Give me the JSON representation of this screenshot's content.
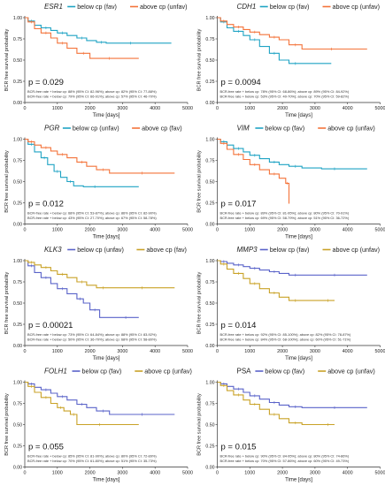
{
  "colors": {
    "teal": "#1fa3c4",
    "orange": "#f4733a",
    "blue": "#5a63c9",
    "gold": "#c9a227",
    "axis": "#333333"
  },
  "common": {
    "xlabel": "Time [days]",
    "ylabel": "BCR free survival probability",
    "xticks": [
      0,
      1000,
      2000,
      3000,
      4000,
      5000
    ],
    "yticks": [
      "0.00",
      "0.25",
      "0.50",
      "0.75",
      "1.00"
    ]
  },
  "chart_data": [
    {
      "type": "line",
      "gene": "ESR1",
      "italic": true,
      "xlim": [
        0,
        5000
      ],
      "ylim": [
        0,
        1
      ],
      "series": [
        {
          "name": "below cp (fav)",
          "color": "teal",
          "x": [
            0,
            100,
            300,
            500,
            800,
            1000,
            1300,
            1600,
            1900,
            2200,
            2500,
            3000,
            3500,
            4500
          ],
          "y": [
            1.0,
            0.96,
            0.91,
            0.88,
            0.85,
            0.82,
            0.79,
            0.76,
            0.73,
            0.71,
            0.7,
            0.7,
            0.7,
            0.7
          ]
        },
        {
          "name": "above cp (unfav)",
          "color": "orange",
          "x": [
            0,
            100,
            300,
            500,
            800,
            1000,
            1300,
            1600,
            2000,
            2400,
            2800,
            3500
          ],
          "y": [
            1.0,
            0.95,
            0.87,
            0.82,
            0.76,
            0.7,
            0.64,
            0.58,
            0.52,
            0.52,
            0.52,
            0.52
          ]
        }
      ],
      "pvalue": "p = 0.029",
      "notes": [
        "BCR-free rate + below cp: 88% (95% CI: 82-96%); above cp: 82% (95% CI: 77-88%)",
        "BCR-free rate + below cp: 79% (95% CI: 66-91%); above cp: 57% (95% CI: 46-70%)"
      ]
    },
    {
      "type": "line",
      "gene": "CDH1",
      "italic": true,
      "xlim": [
        0,
        5000
      ],
      "ylim": [
        0,
        1
      ],
      "series": [
        {
          "name": "below cp (fav)",
          "color": "teal",
          "x": [
            0,
            100,
            300,
            500,
            800,
            1000,
            1300,
            1600,
            1900,
            2200,
            2600,
            3500
          ],
          "y": [
            1.0,
            0.95,
            0.88,
            0.84,
            0.79,
            0.74,
            0.66,
            0.58,
            0.5,
            0.46,
            0.46,
            0.46
          ]
        },
        {
          "name": "above cp (unfav)",
          "color": "orange",
          "x": [
            0,
            100,
            300,
            500,
            800,
            1000,
            1300,
            1600,
            1900,
            2200,
            2600,
            3000,
            4000,
            4600
          ],
          "y": [
            1.0,
            0.96,
            0.92,
            0.89,
            0.86,
            0.83,
            0.8,
            0.77,
            0.74,
            0.68,
            0.63,
            0.63,
            0.63,
            0.63
          ]
        }
      ],
      "pvalue": "p = 0.0094",
      "notes": [
        "BCR-free rate + below cp: 78% (95% CI: 68-86%); above cp: 89% (95% CI: 84-92%)",
        "BCR-free rate + below cp: 53% (95% CI: 40-70%); above cp: 70% (95% CI: 59-82%)"
      ]
    },
    {
      "type": "line",
      "gene": "PGR",
      "italic": true,
      "xlim": [
        0,
        5000
      ],
      "ylim": [
        0,
        1
      ],
      "series": [
        {
          "name": "below cp (unfav)",
          "color": "teal",
          "x": [
            0,
            100,
            300,
            500,
            700,
            900,
            1100,
            1300,
            1500,
            1800,
            2500,
            3500
          ],
          "y": [
            1.0,
            0.94,
            0.85,
            0.78,
            0.7,
            0.62,
            0.55,
            0.5,
            0.45,
            0.44,
            0.44,
            0.44
          ]
        },
        {
          "name": "above cp (fav)",
          "color": "orange",
          "x": [
            0,
            100,
            300,
            500,
            800,
            1000,
            1300,
            1600,
            1900,
            2200,
            2600,
            3200,
            4000,
            4600
          ],
          "y": [
            1.0,
            0.97,
            0.93,
            0.9,
            0.86,
            0.82,
            0.78,
            0.73,
            0.68,
            0.64,
            0.6,
            0.6,
            0.6,
            0.6
          ]
        }
      ],
      "pvalue": "p = 0.012",
      "notes": [
        "BCR-free rate + below cp: 68% (95% CI: 53-87%); above cp: 86% (95% CI: 82-90%)",
        "BCR-free rate + below cp: 43% (95% CI: 27-70%); above cp: 67% (95% CI: 58-78%)"
      ]
    },
    {
      "type": "line",
      "gene": "VIM",
      "italic": true,
      "xlim": [
        0,
        5000
      ],
      "ylim": [
        0,
        1
      ],
      "series": [
        {
          "name": "below cp (fav)",
          "color": "teal",
          "x": [
            0,
            100,
            300,
            500,
            800,
            1000,
            1300,
            1600,
            1900,
            2200,
            2600,
            3200,
            4000,
            4600
          ],
          "y": [
            1.0,
            0.97,
            0.93,
            0.89,
            0.85,
            0.81,
            0.77,
            0.73,
            0.7,
            0.68,
            0.66,
            0.65,
            0.65,
            0.65
          ]
        },
        {
          "name": "above cp (unfav)",
          "color": "orange",
          "x": [
            0,
            100,
            300,
            500,
            800,
            1000,
            1300,
            1600,
            1900,
            2100,
            2200
          ],
          "y": [
            1.0,
            0.95,
            0.88,
            0.82,
            0.76,
            0.7,
            0.64,
            0.59,
            0.54,
            0.48,
            0.24
          ]
        }
      ],
      "pvalue": "p = 0.017",
      "notes": [
        "BCR-free rate + below cp: 89% (95% CI: 81-95%); above cp: 80% (95% CI: 70-91%)",
        "BCR-free rate + below cp: 69% (95% CI: 58-79%); above cp: 51% (95% CI: 36-72%)"
      ]
    },
    {
      "type": "line",
      "gene": "KLK3",
      "italic": true,
      "xlim": [
        0,
        5000
      ],
      "ylim": [
        0,
        1
      ],
      "series": [
        {
          "name": "below cp (unfav)",
          "color": "blue",
          "x": [
            0,
            100,
            300,
            500,
            800,
            1000,
            1300,
            1600,
            1800,
            2000,
            2300,
            2700,
            3500
          ],
          "y": [
            1.0,
            0.94,
            0.86,
            0.8,
            0.73,
            0.67,
            0.61,
            0.55,
            0.5,
            0.42,
            0.33,
            0.33,
            0.33
          ]
        },
        {
          "name": "above cp (fav)",
          "color": "gold",
          "x": [
            0,
            100,
            300,
            500,
            800,
            1000,
            1300,
            1600,
            1900,
            2200,
            2600,
            3200,
            4000,
            4600
          ],
          "y": [
            1.0,
            0.98,
            0.95,
            0.92,
            0.88,
            0.84,
            0.8,
            0.75,
            0.71,
            0.68,
            0.68,
            0.68,
            0.68,
            0.68
          ]
        }
      ],
      "pvalue": "p = 0.00021",
      "notes": [
        "BCR-free rate + below cp: 73% (95% CI: 64-84%); above cp: 88% (95% CI: 83-92%)",
        "BCR-free rate + below cp: 50% (95% CI: 36-70%); above cp: 68% (95% CI: 58-80%)"
      ]
    },
    {
      "type": "line",
      "gene": "MMP3",
      "italic": true,
      "xlim": [
        0,
        5000
      ],
      "ylim": [
        0,
        1
      ],
      "series": [
        {
          "name": "below cp (fav)",
          "color": "blue",
          "x": [
            0,
            100,
            300,
            500,
            800,
            1000,
            1300,
            1600,
            1900,
            2200,
            2600,
            3200,
            4000,
            4600
          ],
          "y": [
            1.0,
            0.99,
            0.97,
            0.95,
            0.93,
            0.91,
            0.89,
            0.87,
            0.85,
            0.83,
            0.83,
            0.83,
            0.83,
            0.83
          ]
        },
        {
          "name": "above cp (unfav)",
          "color": "gold",
          "x": [
            0,
            100,
            300,
            500,
            800,
            1000,
            1300,
            1600,
            1900,
            2200,
            2600,
            3200,
            3600
          ],
          "y": [
            1.0,
            0.96,
            0.9,
            0.85,
            0.79,
            0.73,
            0.67,
            0.62,
            0.57,
            0.53,
            0.53,
            0.53,
            0.53
          ]
        }
      ],
      "pvalue": "p = 0.014",
      "notes": [
        "BCR-free rate + below cp: 92% (95% CI: 85-100%); above cp: 82% (95% CI: 78-87%)",
        "BCR-free rate + below cp: 84% (95% CI: 68-100%); above cp: 60% (95% CI: 51-71%)"
      ]
    },
    {
      "type": "line",
      "gene": "FOLH1",
      "italic": true,
      "xlim": [
        0,
        5000
      ],
      "ylim": [
        0,
        1
      ],
      "series": [
        {
          "name": "below cp (fav)",
          "color": "blue",
          "x": [
            0,
            100,
            300,
            500,
            800,
            1000,
            1300,
            1600,
            1900,
            2200,
            2600,
            3200,
            4000,
            4600
          ],
          "y": [
            1.0,
            0.98,
            0.94,
            0.91,
            0.87,
            0.83,
            0.79,
            0.74,
            0.7,
            0.66,
            0.62,
            0.62,
            0.62,
            0.62
          ]
        },
        {
          "name": "above cp (unfav)",
          "color": "gold",
          "x": [
            0,
            100,
            300,
            500,
            800,
            1000,
            1200,
            1400,
            1600,
            2000,
            2600,
            3500
          ],
          "y": [
            1.0,
            0.95,
            0.88,
            0.82,
            0.75,
            0.7,
            0.66,
            0.62,
            0.5,
            0.5,
            0.5,
            0.5
          ]
        }
      ],
      "pvalue": "p = 0.055",
      "notes": [
        "BCR-free rate + below cp: 85% (95% CI: 81-90%); above cp: 80% (95% CI: 72-89%)",
        "BCR-free rate + below cp: 70% (95% CI: 61-80%); above cp: 51% (95% CI: 35-73%)"
      ]
    },
    {
      "type": "line",
      "gene": "PSA",
      "italic": false,
      "xlim": [
        0,
        5000
      ],
      "ylim": [
        0,
        1
      ],
      "series": [
        {
          "name": "below cp (fav)",
          "color": "blue",
          "x": [
            0,
            100,
            300,
            500,
            800,
            1000,
            1300,
            1600,
            1900,
            2200,
            2600,
            3200,
            4000,
            4600
          ],
          "y": [
            1.0,
            0.98,
            0.95,
            0.92,
            0.88,
            0.84,
            0.8,
            0.76,
            0.73,
            0.71,
            0.7,
            0.7,
            0.7,
            0.7
          ]
        },
        {
          "name": "above cp (unfav)",
          "color": "gold",
          "x": [
            0,
            100,
            300,
            500,
            800,
            1000,
            1300,
            1600,
            1900,
            2200,
            2600,
            3200,
            3600
          ],
          "y": [
            1.0,
            0.96,
            0.9,
            0.85,
            0.79,
            0.74,
            0.68,
            0.62,
            0.57,
            0.52,
            0.5,
            0.5,
            0.5
          ]
        }
      ],
      "pvalue": "p = 0.015",
      "notes": [
        "BCR-free rate + below cp: 90% (95% CI: 84-95%); above cp: 80% (95% CI: 74-86%)",
        "BCR-free rate + below cp: 70% (95% CI: 57-86%); above cp: 60% (95% CI: 49-73%)"
      ]
    }
  ]
}
